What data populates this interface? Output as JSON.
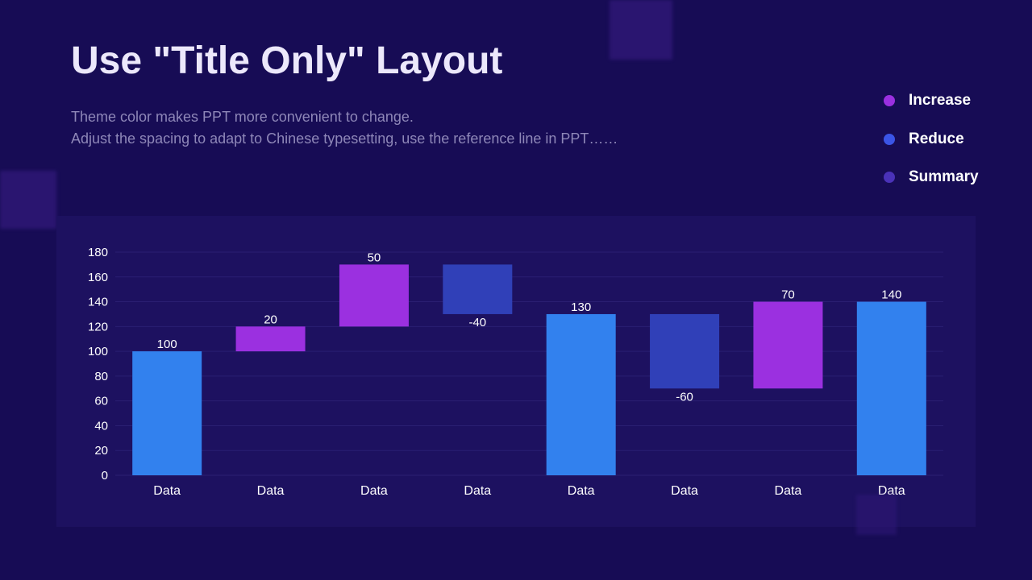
{
  "title": "Use \"Title Only\" Layout",
  "subtitle_lines": [
    "Theme color makes PPT more convenient to change.",
    "Adjust the spacing to adapt to Chinese typesetting, use the reference line in PPT……"
  ],
  "legend": [
    {
      "label": "Increase",
      "color": "#9b30e0"
    },
    {
      "label": "Reduce",
      "color": "#3b55e6"
    },
    {
      "label": "Summary",
      "color": "#4a32b8"
    }
  ],
  "colors": {
    "increase": "#9b30e0",
    "reduce": "#3040b8",
    "total": "#3281ee",
    "background": "#170c55",
    "panel": "#1d1160",
    "gridline": "#2a1f72"
  },
  "chart_data": {
    "type": "bar",
    "subtype": "waterfall",
    "title": "",
    "xlabel": "",
    "ylabel": "",
    "ylim": [
      0,
      180
    ],
    "yticks": [
      0,
      20,
      40,
      60,
      80,
      100,
      120,
      140,
      160,
      180
    ],
    "grid": true,
    "categories": [
      "Data",
      "Data",
      "Data",
      "Data",
      "Data",
      "Data",
      "Data",
      "Data"
    ],
    "bars": [
      {
        "start": 0,
        "end": 100,
        "label": "100",
        "kind": "total"
      },
      {
        "start": 100,
        "end": 120,
        "label": "20",
        "kind": "increase"
      },
      {
        "start": 120,
        "end": 170,
        "label": "50",
        "kind": "increase"
      },
      {
        "start": 170,
        "end": 130,
        "label": "-40",
        "kind": "reduce"
      },
      {
        "start": 0,
        "end": 130,
        "label": "130",
        "kind": "total"
      },
      {
        "start": 130,
        "end": 70,
        "label": "-60",
        "kind": "reduce"
      },
      {
        "start": 70,
        "end": 140,
        "label": "70",
        "kind": "increase"
      },
      {
        "start": 0,
        "end": 140,
        "label": "140",
        "kind": "total"
      }
    ]
  }
}
